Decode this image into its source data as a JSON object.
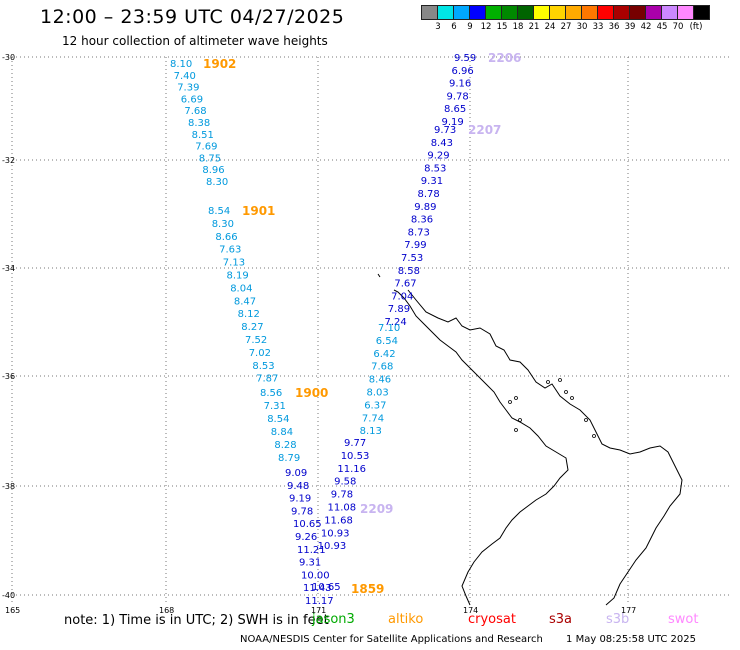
{
  "title": "12:00 – 23:59 UTC 04/27/2025",
  "subtitle": "12 hour collection of altimeter wave heights",
  "legend": {
    "colors": [
      "#888888",
      "#00e5e5",
      "#00a8ff",
      "#0000ff",
      "#00b000",
      "#008800",
      "#006400",
      "#ffff00",
      "#ffd400",
      "#ffaa00",
      "#ff7700",
      "#ff0000",
      "#aa0000",
      "#770000",
      "#aa00aa",
      "#cc88ff",
      "#ff88ff",
      "#000000"
    ],
    "ticks": [
      "3",
      "6",
      "9",
      "12",
      "15",
      "18",
      "21",
      "24",
      "27",
      "30",
      "33",
      "36",
      "39",
      "42",
      "45",
      "70"
    ],
    "unit": "(ft)"
  },
  "axes": {
    "lat_labels": [
      "-30",
      "-32",
      "-34",
      "-36",
      "-38",
      "-40"
    ],
    "lon_labels": [
      "165",
      "168",
      "171",
      "174",
      "177"
    ]
  },
  "tracks": [
    {
      "label": "1902",
      "label_color": "#ff9900",
      "color": "#0099dd",
      "values": [
        "8.10",
        "7.40",
        "7.39",
        "6.69",
        "7.68",
        "8.38",
        "8.51",
        "7.69",
        "8.75",
        "8.96",
        "8.30"
      ]
    },
    {
      "label": "1901",
      "label_color": "#ff9900",
      "color": "#0099dd",
      "values": [
        "8.54",
        "8.30",
        "8.66",
        "7.63",
        "7.13",
        "8.19",
        "8.04",
        "8.47",
        "8.12",
        "8.27",
        "7.52",
        "7.02",
        "8.53",
        "7.87"
      ]
    },
    {
      "label": "1900",
      "label_color": "#ff9900",
      "color": "#0099dd",
      "values": [
        "8.56",
        "7.31",
        "8.54",
        "8.84",
        "8.28",
        "8.79"
      ]
    },
    {
      "label": "",
      "label_color": "#ff9900",
      "color": "#0000cc",
      "values": [
        "9.09",
        "9.48",
        "9.19",
        "9.78",
        "10.65",
        "9.26",
        "11.21",
        "9.31",
        "10.00",
        "11.43",
        "11.17"
      ]
    },
    {
      "label": "1859",
      "label_color": "#ff9900",
      "color": "#0000cc",
      "values": [
        "10.65"
      ]
    },
    {
      "label": "2206",
      "label_color": "#c8b4f0",
      "color": "#0000cc",
      "values": [
        "9.59",
        "6.96",
        "9.16",
        "9.78",
        "8.65",
        "9.19"
      ]
    },
    {
      "label": "2207",
      "label_color": "#c8b4f0",
      "color": "#0000cc",
      "values": [
        "9.73",
        "8.43",
        "9.29",
        "8.53",
        "9.31",
        "8.78",
        "9.89",
        "8.36",
        "8.73",
        "7.99",
        "7.53",
        "8.58",
        "7.67",
        "7.04",
        "7.89",
        "7.24"
      ]
    },
    {
      "label": "",
      "label_color": "#c8b4f0",
      "color": "#0099dd",
      "values": [
        "7.10",
        "6.54",
        "6.42",
        "7.68",
        "8.46",
        "8.03",
        "6.37",
        "7.74",
        "8.13"
      ]
    },
    {
      "label": "2209",
      "label_color": "#c8b4f0",
      "color": "#0000cc",
      "values": [
        "9.77",
        "10.53",
        "11.16",
        "9.58",
        "9.78",
        "11.08",
        "11.68",
        "10.93",
        "10.93"
      ]
    }
  ],
  "note": "note:  1) Time is in UTC;  2) SWH is in feet",
  "satellites": [
    {
      "name": "jason3",
      "color": "#00aa00"
    },
    {
      "name": "altiko",
      "color": "#ff9900"
    },
    {
      "name": "cryosat",
      "color": "#ff0000"
    },
    {
      "name": "s3a",
      "color": "#aa0000"
    },
    {
      "name": "s3b",
      "color": "#c8b4f0"
    },
    {
      "name": "swot",
      "color": "#ff88ff"
    }
  ],
  "footer": {
    "org": "NOAA/NESDIS Center for Satellite Applications and Research",
    "stamp": "1 May 08:25:58 UTC 2025"
  }
}
